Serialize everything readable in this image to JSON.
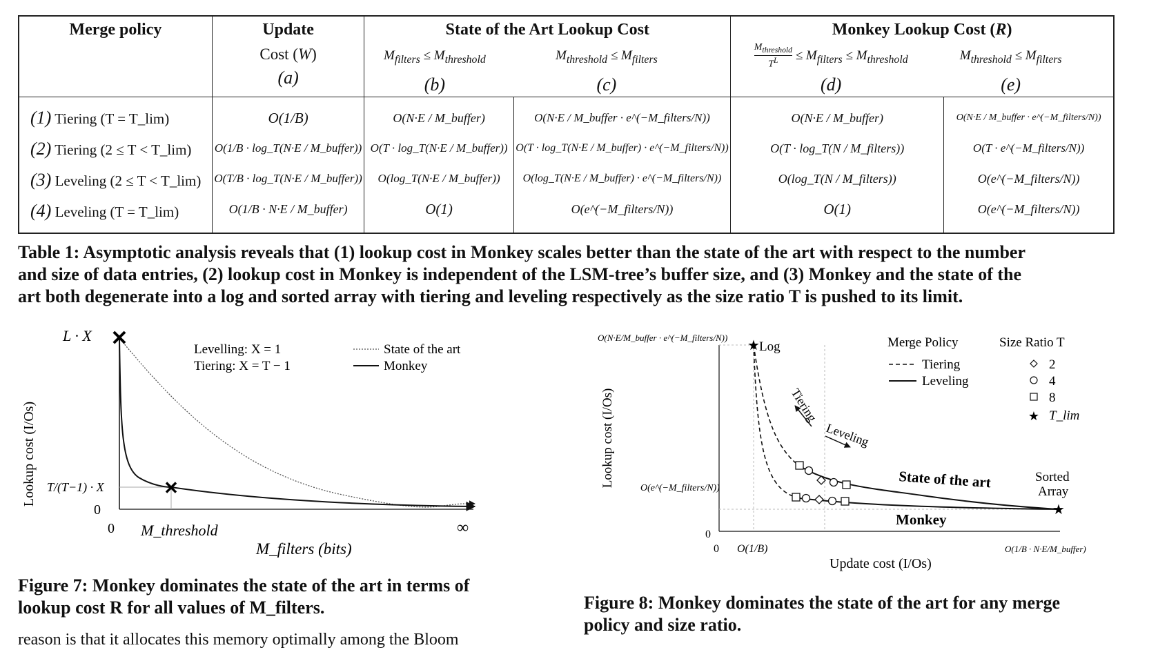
{
  "table": {
    "headers": {
      "merge_policy": "Merge policy",
      "update_cost_line1": "Update",
      "update_cost_line2": "Cost (W)",
      "sota": "State of the Art Lookup Cost",
      "monkey": "Monkey Lookup Cost (R)",
      "b_cond": "M_filters ≤ M_threshold",
      "c_cond": "M_threshold ≤ M_filters",
      "d_cond": "M_threshold / T^L ≤ M_filters ≤ M_threshold",
      "e_cond": "M_threshold ≤ M_filters",
      "letters": [
        "(a)",
        "(b)",
        "(c)",
        "(d)",
        "(e)"
      ]
    },
    "rows": [
      {
        "num": "(1)",
        "policy": "Tiering (T = T_lim)",
        "a": "O(1/B)",
        "b": "O(N·E / M_buffer)",
        "c": "O(N·E / M_buffer · e^(−M_filters/N))",
        "d": "O(N·E / M_buffer)",
        "e": "O(N·E / M_buffer · e^(−M_filters/N))"
      },
      {
        "num": "(2)",
        "policy": "Tiering (2 ≤ T < T_lim)",
        "a": "O(1/B · log_T(N·E / M_buffer))",
        "b": "O(T · log_T(N·E / M_buffer))",
        "c": "O(T · log_T(N·E / M_buffer) · e^(−M_filters/N))",
        "d": "O(T · log_T(N / M_filters))",
        "e": "O(T · e^(−M_filters/N))"
      },
      {
        "num": "(3)",
        "policy": "Leveling (2 ≤ T < T_lim)",
        "a": "O(T/B · log_T(N·E / M_buffer))",
        "b": "O(log_T(N·E / M_buffer))",
        "c": "O(log_T(N·E / M_buffer) · e^(−M_filters/N))",
        "d": "O(log_T(N / M_filters))",
        "e": "O(e^(−M_filters/N))"
      },
      {
        "num": "(4)",
        "policy": "Leveling (T = T_lim)",
        "a": "O(1/B · N·E / M_buffer)",
        "b": "O(1)",
        "c": "O(e^(−M_filters/N))",
        "d": "O(1)",
        "e": "O(e^(−M_filters/N))"
      }
    ]
  },
  "table_caption": [
    "Table 1: Asymptotic analysis reveals that (1) lookup cost in Monkey scales better than the state of the art with respect to the number",
    "and size of data entries, (2) lookup cost in Monkey is independent of the LSM-tree’s buffer size, and (3) Monkey and the state of the",
    "art both degenerate into a log and sorted array with tiering and leveling respectively as the size ratio T is pushed to its limit."
  ],
  "fig7": {
    "caption_line1": "Figure 7:  Monkey dominates the state of the art in terms of",
    "caption_line2": "lookup cost R for all values of M_filters.",
    "ylabel": "Lookup cost (I/Os)",
    "xlabel": "M_filters (bits)",
    "y_top_label": "L · X",
    "y_mid_label": "T/(T−1) · X",
    "y_zero": "0",
    "x_zero": "0",
    "x_threshold": "M_threshold",
    "x_inf": "∞",
    "note1": "Levelling:  X = 1",
    "note2": "Tiering:    X = T − 1",
    "legend_sota": "State of the art",
    "legend_monkey": "Monkey"
  },
  "fig8": {
    "caption_line1": "Figure 8: Monkey dominates the state of the art for any merge",
    "caption_line2": "policy and size ratio.",
    "ylabel": "Lookup cost (I/Os)",
    "xlabel": "Update cost (I/Os)",
    "y_top": "O(N·E/M_buffer · e^(−M_filters/N))",
    "y_mid": "O(e^(−M_filters/N))",
    "y_zero": "0",
    "x_zero": "0",
    "x_1b": "O(1/B)",
    "x_right": "O(1/B · N·E/M_buffer)",
    "log_label": "Log",
    "sorted_label1": "Sorted",
    "sorted_label2": "Array",
    "tiering_arrow": "Tiering",
    "leveling_arrow": "Leveling",
    "sota_curve": "State of the art",
    "monkey_curve": "Monkey",
    "legend_merge_title": "Merge Policy",
    "legend_tiering": "Tiering",
    "legend_leveling": "Leveling",
    "legend_size_title": "Size Ratio  T",
    "size_values": [
      "2",
      "4",
      "8",
      "T_lim"
    ]
  },
  "body_text_fragment": "reason is that it allocates this memory optimally among the Bloom"
}
